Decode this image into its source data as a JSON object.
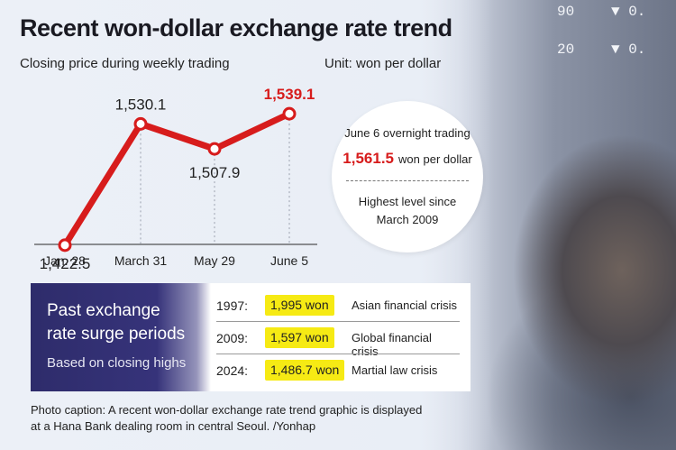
{
  "title": "Recent won-dollar exchange rate trend",
  "subtitle": "Closing price during weekly trading",
  "unit": "Unit: won per dollar",
  "chart_data": {
    "type": "line",
    "title": "Recent won-dollar exchange rate trend",
    "subtitle": "Closing price during weekly trading",
    "ylabel": "won per dollar",
    "categories": [
      "Jan. 28",
      "March 31",
      "May 29",
      "June 5"
    ],
    "series": [
      {
        "values": [
          1422.5,
          1530.1,
          1507.9,
          1539.1
        ]
      }
    ],
    "value_labels": [
      "1,422.5",
      "1,530.1",
      "1,507.9",
      "1,539.1"
    ],
    "highlight_index": 3,
    "ylim": [
      1400,
      1560
    ],
    "grid": false,
    "line_color": "#d71c1c",
    "highlight_color": "#d71c1c"
  },
  "callout": {
    "heading": "June 6 overnight trading",
    "rate": "1,561.5",
    "rate_unit": "won per dollar",
    "note_line1": "Highest level since",
    "note_line2": "March 2009"
  },
  "surge": {
    "title_line1": "Past exchange",
    "title_line2": "rate surge periods",
    "subtitle": "Based on closing highs",
    "rows": [
      {
        "year": "1997:",
        "won": "1,995 won",
        "reason": "Asian financial crisis"
      },
      {
        "year": "2009:",
        "won": "1,597 won",
        "reason": "Global financial crisis"
      },
      {
        "year": "2024:",
        "won": "1,486.7 won",
        "reason": "Martial law crisis"
      }
    ]
  },
  "caption": {
    "line1": "Photo caption: A recent won-dollar exchange rate trend graphic is displayed",
    "line2": "at a Hana Bank dealing room in central Seoul. /Yonhap"
  },
  "background_ticker": [
    "90",
    "▼ 0.",
    "20",
    "▼ 0."
  ],
  "colors": {
    "accent_red": "#d71c1c",
    "panel_navy": "#2e2c6b",
    "highlight_yellow": "#f6ea14"
  }
}
